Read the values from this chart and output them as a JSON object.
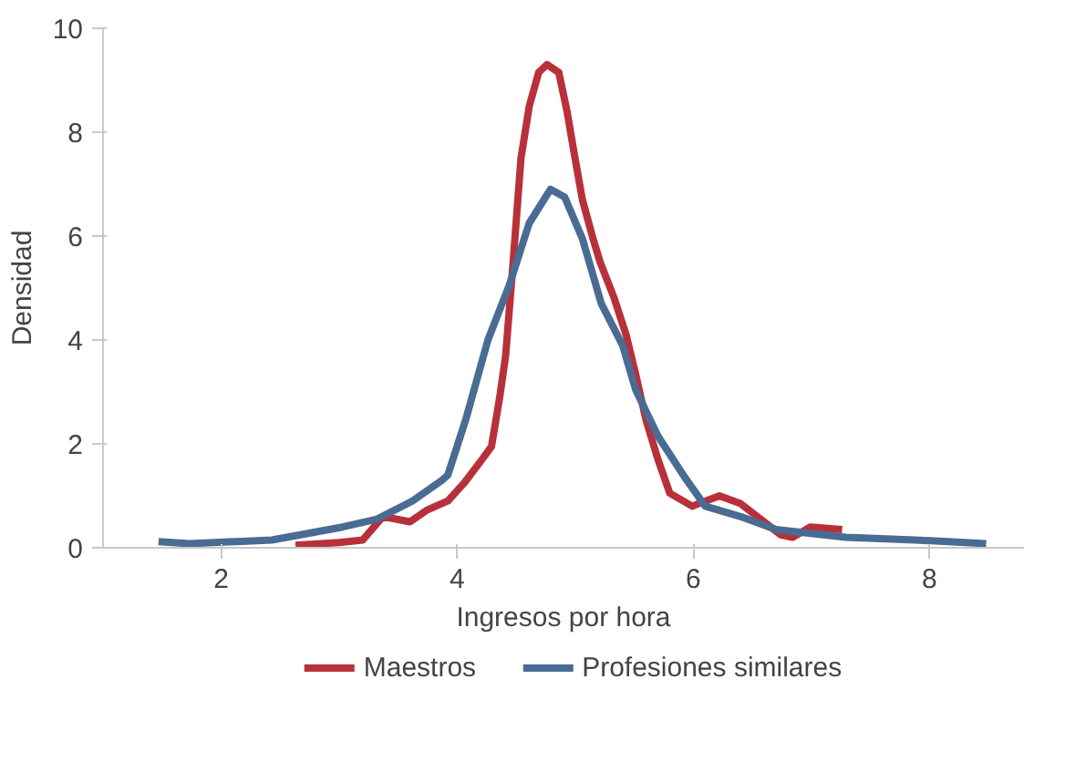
{
  "chart_data": {
    "type": "line",
    "xlabel": "Ingresos por hora",
    "ylabel": "Densidad",
    "xlim": [
      1.0,
      8.8
    ],
    "ylim": [
      0,
      10
    ],
    "xticks": [
      2,
      4,
      6,
      8
    ],
    "yticks": [
      0,
      2,
      4,
      6,
      8,
      10
    ],
    "grid": false,
    "legend": "bottom",
    "marker": "none",
    "line_style": "solid",
    "series": [
      {
        "name": "Maestros",
        "color": "#b8313a",
        "x": [
          2.63,
          3.0,
          3.2,
          3.37,
          3.6,
          3.74,
          3.92,
          4.06,
          4.21,
          4.29,
          4.36,
          4.41,
          4.47,
          4.54,
          4.61,
          4.69,
          4.76,
          4.86,
          4.93,
          4.99,
          5.06,
          5.15,
          5.21,
          5.33,
          5.43,
          5.51,
          5.6,
          5.7,
          5.8,
          5.99,
          6.22,
          6.4,
          6.74,
          6.84,
          6.99,
          7.26
        ],
        "values": [
          0.05,
          0.1,
          0.15,
          0.6,
          0.5,
          0.72,
          0.9,
          1.25,
          1.7,
          1.95,
          2.9,
          3.7,
          5.4,
          7.5,
          8.5,
          9.15,
          9.3,
          9.15,
          8.4,
          7.6,
          6.7,
          5.95,
          5.5,
          4.8,
          4.1,
          3.35,
          2.45,
          1.7,
          1.05,
          0.8,
          1.0,
          0.85,
          0.25,
          0.2,
          0.4,
          0.35
        ]
      },
      {
        "name": "Profesiones similares",
        "color": "#4a6b93",
        "x": [
          1.47,
          1.73,
          2.43,
          3.03,
          3.32,
          3.62,
          3.87,
          3.92,
          4.07,
          4.26,
          4.44,
          4.61,
          4.79,
          4.91,
          5.06,
          5.22,
          5.4,
          5.51,
          5.7,
          5.92,
          6.1,
          6.4,
          6.7,
          7.29,
          7.88,
          8.48
        ],
        "values": [
          0.12,
          0.08,
          0.15,
          0.4,
          0.55,
          0.9,
          1.3,
          1.4,
          2.45,
          4.0,
          5.05,
          6.25,
          6.9,
          6.75,
          5.95,
          4.7,
          3.9,
          3.05,
          2.15,
          1.38,
          0.8,
          0.6,
          0.35,
          0.2,
          0.15,
          0.08
        ]
      }
    ]
  }
}
